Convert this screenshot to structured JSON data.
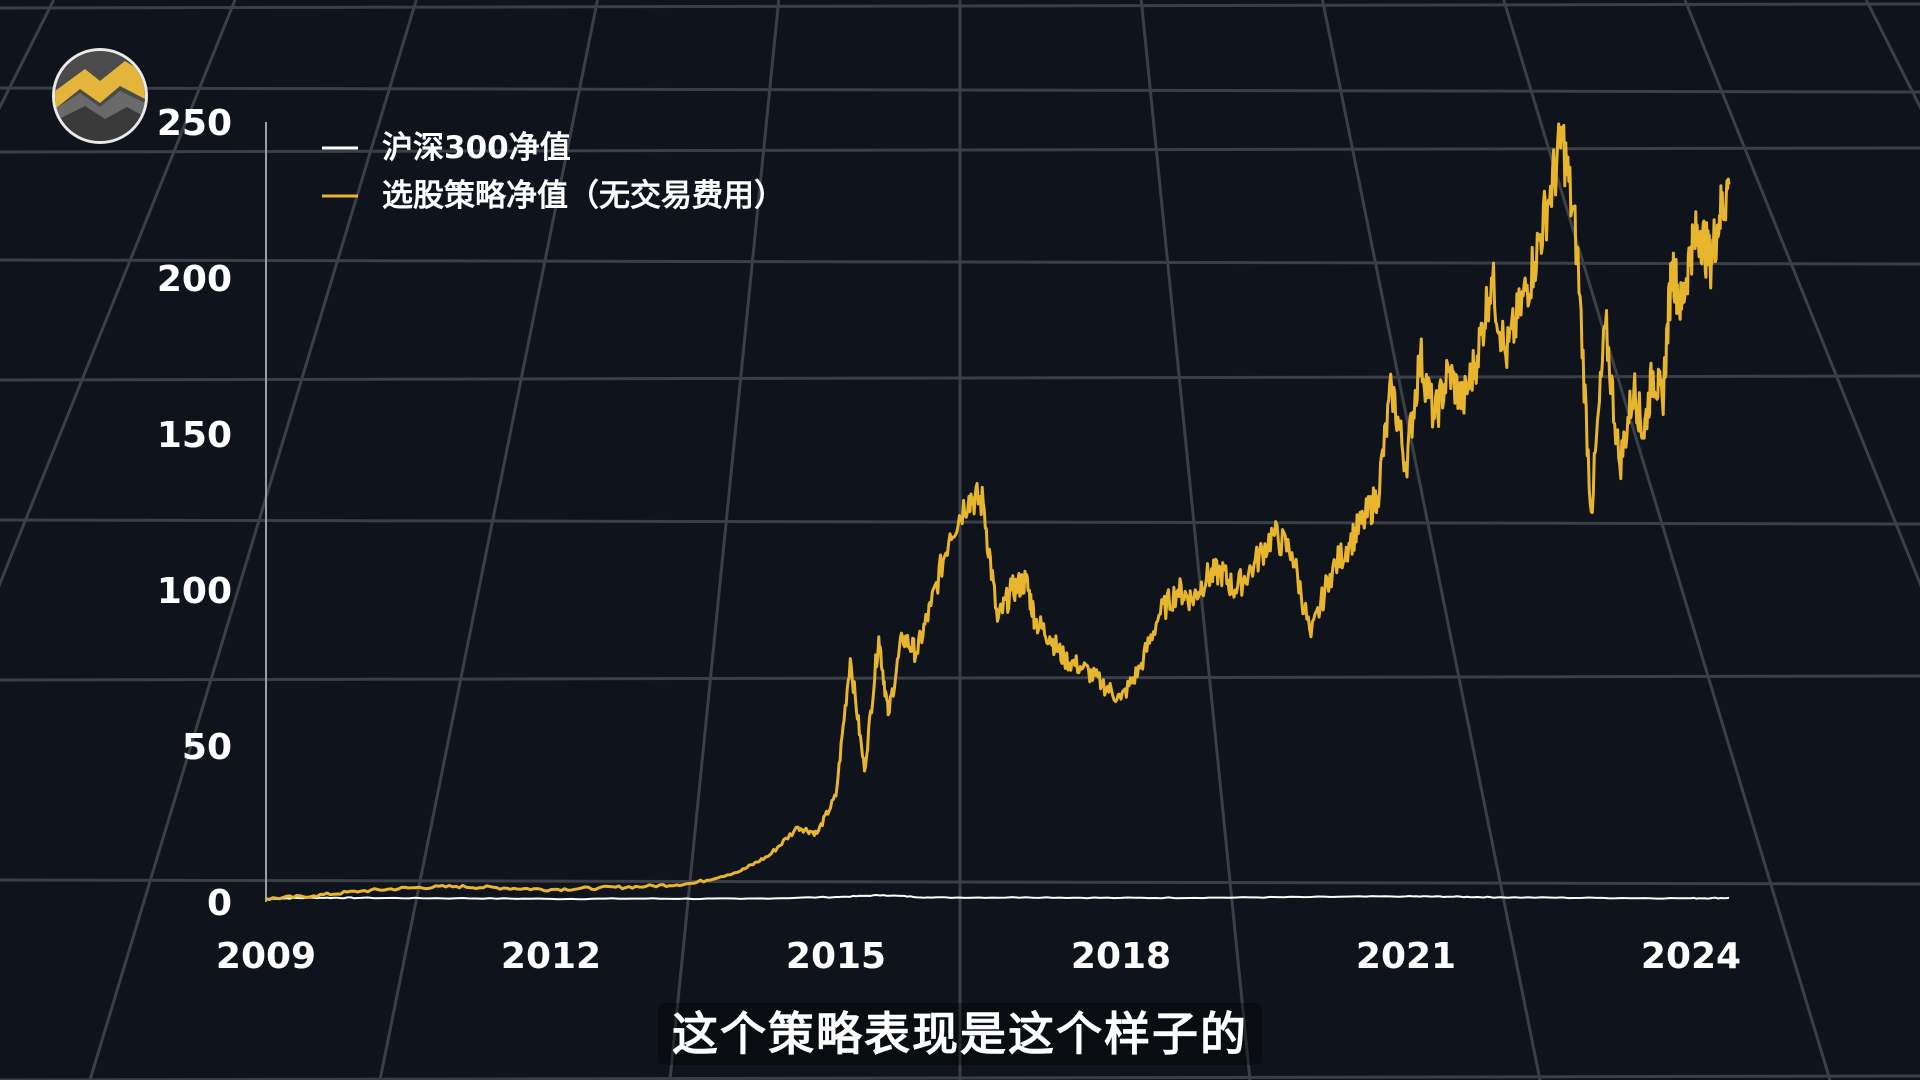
{
  "subtitle": "这个策略表现是这个样子的",
  "colors": {
    "background": "#0f131b",
    "grid": "#3b3f47",
    "strategy": "#e8b52f",
    "index": "#ffffff"
  },
  "chart_data": {
    "type": "line",
    "title": "",
    "xlabel": "",
    "ylabel": "",
    "xlim": [
      2009,
      2024.6
    ],
    "ylim": [
      0,
      250
    ],
    "x_ticks": [
      "2009",
      "2012",
      "2015",
      "2018",
      "2021",
      "2024"
    ],
    "y_ticks": [
      "0",
      "50",
      "100",
      "150",
      "200",
      "250"
    ],
    "legend_position": "top-left",
    "grid": true,
    "series": [
      {
        "name": "沪深300净值",
        "color": "#ffffff",
        "x": [
          2009.0,
          2009.5,
          2010.0,
          2011.0,
          2012.0,
          2013.0,
          2014.0,
          2015.0,
          2015.5,
          2016.0,
          2017.0,
          2018.0,
          2019.0,
          2020.0,
          2021.0,
          2021.5,
          2022.0,
          2023.0,
          2024.0,
          2024.4
        ],
        "y": [
          1.0,
          1.4,
          1.3,
          1.2,
          1.0,
          1.1,
          1.0,
          1.6,
          2.2,
          1.4,
          1.5,
          1.3,
          1.4,
          1.6,
          1.8,
          1.7,
          1.5,
          1.3,
          1.2,
          1.3
        ]
      },
      {
        "name": "选股策略净值（无交易费用）",
        "color": "#e8b52f",
        "x": [
          2009.0,
          2009.5,
          2010.0,
          2010.5,
          2011.0,
          2011.5,
          2012.0,
          2012.5,
          2013.0,
          2013.5,
          2014.0,
          2014.3,
          2014.6,
          2014.8,
          2015.0,
          2015.15,
          2015.3,
          2015.45,
          2015.55,
          2015.7,
          2015.85,
          2016.0,
          2016.2,
          2016.4,
          2016.55,
          2016.7,
          2016.85,
          2017.0,
          2017.1,
          2017.25,
          2017.4,
          2017.6,
          2017.8,
          2018.0,
          2018.2,
          2018.4,
          2018.6,
          2018.75,
          2018.9,
          2019.05,
          2019.2,
          2019.4,
          2019.6,
          2019.8,
          2020.0,
          2020.2,
          2020.4,
          2020.55,
          2020.7,
          2020.85,
          2021.0,
          2021.15,
          2021.3,
          2021.45,
          2021.6,
          2021.75,
          2021.9,
          2022.05,
          2022.2,
          2022.35,
          2022.5,
          2022.65,
          2022.8,
          2022.95,
          2023.1,
          2023.25,
          2023.4,
          2023.5,
          2023.6,
          2023.7,
          2023.8,
          2023.9,
          2024.0,
          2024.1,
          2024.2,
          2024.3,
          2024.4
        ],
        "y": [
          1.0,
          2.0,
          3.5,
          4.5,
          5.0,
          4.5,
          4.0,
          4.5,
          5.0,
          6.0,
          10.0,
          15.0,
          24.0,
          22.0,
          34.0,
          78.0,
          42.0,
          85.0,
          60.0,
          85.0,
          80.0,
          95.0,
          118.0,
          130.0,
          128.0,
          90.0,
          100.0,
          103.0,
          90.0,
          85.0,
          78.0,
          75.0,
          70.0,
          65.0,
          75.0,
          92.0,
          100.0,
          97.0,
          104.0,
          106.0,
          100.0,
          108.0,
          118.0,
          112.0,
          85.0,
          105.0,
          115.0,
          122.0,
          130.0,
          165.0,
          140.0,
          175.0,
          155.0,
          170.0,
          160.0,
          175.0,
          200.0,
          175.0,
          190.0,
          205.0,
          225.0,
          245.0,
          210.0,
          125.0,
          185.0,
          140.0,
          165.0,
          150.0,
          170.0,
          160.0,
          205.0,
          190.0,
          210.0,
          215.0,
          205.0,
          220.0,
          230.0
        ]
      }
    ]
  }
}
